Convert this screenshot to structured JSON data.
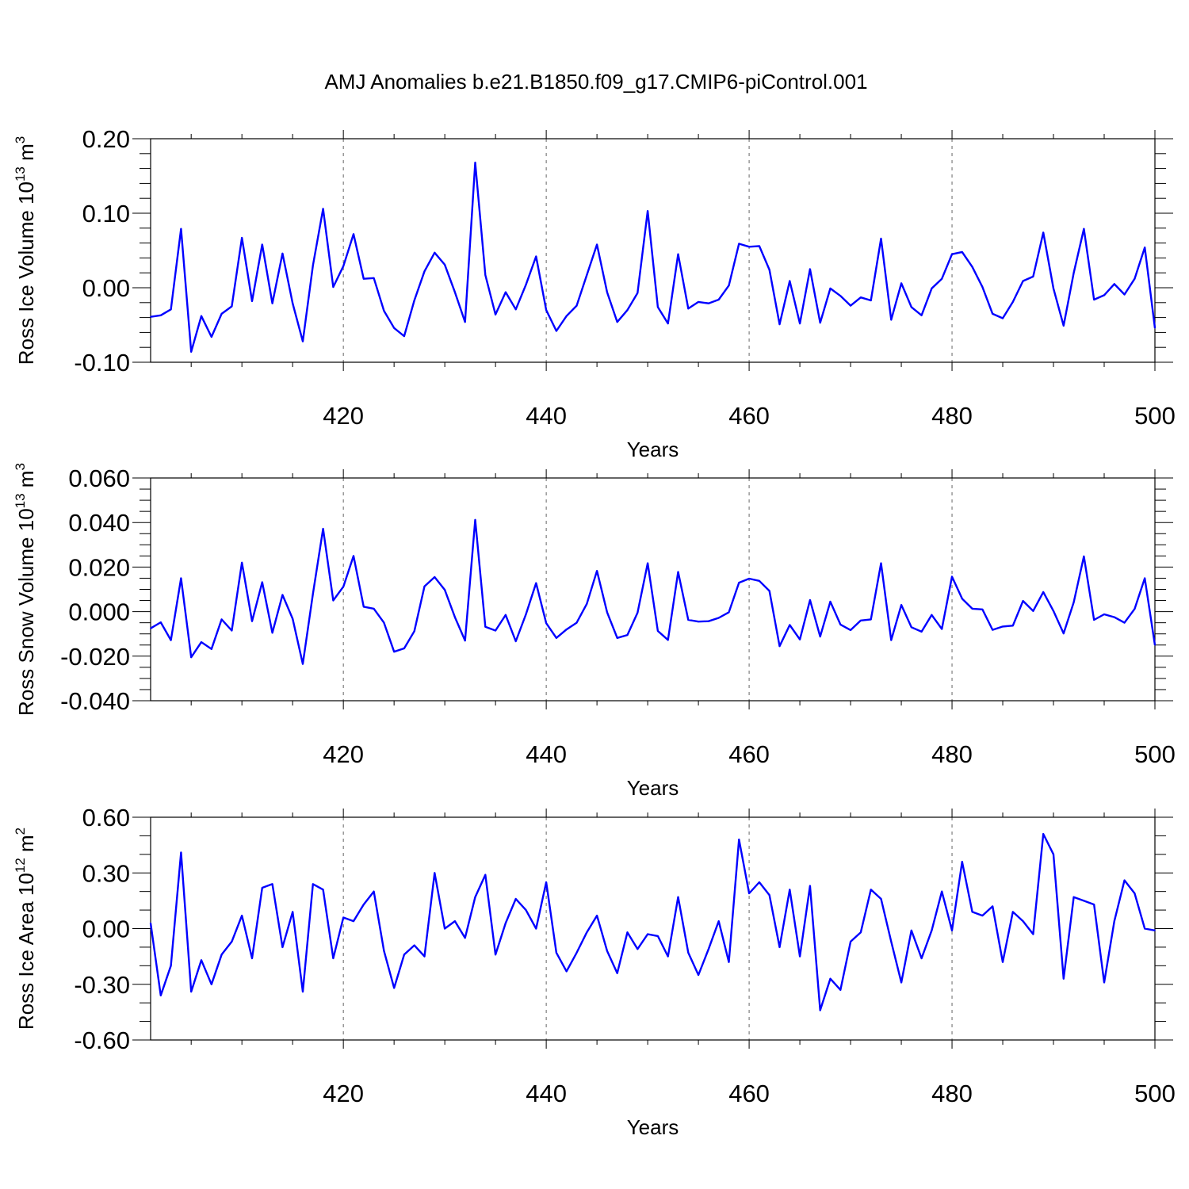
{
  "figure": {
    "title": "AMJ Anomalies b.e21.B1850.f09_g17.CMIP6-piControl.001"
  },
  "chart_data": [
    {
      "type": "line",
      "title": "AMJ Anomalies b.e21.B1850.f09_g17.CMIP6-piControl.001",
      "xlabel": "Years",
      "ylabel": {
        "text": "Ross Ice Volume 10",
        "exp": "13",
        "unit": " m",
        "unit_exp": "3"
      },
      "xlim": [
        401,
        500
      ],
      "ylim": [
        -0.1,
        0.2
      ],
      "xticks": [
        "420",
        "440",
        "460",
        "480",
        "500"
      ],
      "xtick_values": [
        420,
        440,
        460,
        480,
        500
      ],
      "yticks": [
        "0.20",
        "0.10",
        "0.00",
        "-0.10"
      ],
      "ytick_values": [
        0.2,
        0.1,
        0.0,
        -0.1
      ],
      "y_minor_step": 0.02,
      "x_minor_step": 5,
      "grid": "vertical dashed at major x ticks",
      "line_color": "#0000ff",
      "x": [
        401,
        402,
        403,
        404,
        405,
        406,
        407,
        408,
        409,
        410,
        411,
        412,
        413,
        414,
        415,
        416,
        417,
        418,
        419,
        420,
        421,
        422,
        423,
        424,
        425,
        426,
        427,
        428,
        429,
        430,
        431,
        432,
        433,
        434,
        435,
        436,
        437,
        438,
        439,
        440,
        441,
        442,
        443,
        444,
        445,
        446,
        447,
        448,
        449,
        450,
        451,
        452,
        453,
        454,
        455,
        456,
        457,
        458,
        459,
        460,
        461,
        462,
        463,
        464,
        465,
        466,
        467,
        468,
        469,
        470,
        471,
        472,
        473,
        474,
        475,
        476,
        477,
        478,
        479,
        480,
        481,
        482,
        483,
        484,
        485,
        486,
        487,
        488,
        489,
        490,
        491,
        492,
        493,
        494,
        495,
        496,
        497,
        498,
        499,
        500
      ],
      "values": [
        -0.039,
        -0.037,
        -0.029,
        0.079,
        -0.086,
        -0.038,
        -0.066,
        -0.035,
        -0.025,
        0.067,
        -0.018,
        0.058,
        -0.021,
        0.046,
        -0.021,
        -0.072,
        0.03,
        0.106,
        0.001,
        0.029,
        0.072,
        0.012,
        0.013,
        -0.031,
        -0.054,
        -0.065,
        -0.017,
        0.022,
        0.047,
        0.031,
        -0.006,
        -0.046,
        0.168,
        0.017,
        -0.036,
        -0.006,
        -0.029,
        0.004,
        0.042,
        -0.03,
        -0.058,
        -0.038,
        -0.024,
        0.017,
        0.058,
        -0.006,
        -0.046,
        -0.03,
        -0.007,
        0.103,
        -0.026,
        -0.048,
        0.045,
        -0.028,
        -0.019,
        -0.021,
        -0.016,
        0.003,
        0.059,
        0.055,
        0.056,
        0.024,
        -0.049,
        0.009,
        -0.048,
        0.025,
        -0.047,
        -0.001,
        -0.011,
        -0.024,
        -0.013,
        -0.017,
        0.066,
        -0.043,
        0.006,
        -0.026,
        -0.037,
        -0.001,
        0.012,
        0.045,
        0.048,
        0.028,
        0.001,
        -0.035,
        -0.041,
        -0.019,
        0.009,
        0.015,
        0.074,
        -0.001,
        -0.051,
        0.02,
        0.079,
        -0.016,
        -0.01,
        0.005,
        -0.009,
        0.012,
        0.054,
        -0.054
      ]
    },
    {
      "type": "line",
      "xlabel": "Years",
      "ylabel": {
        "text": "Ross Snow Volume 10",
        "exp": "13",
        "unit": " m",
        "unit_exp": "3"
      },
      "xlim": [
        401,
        500
      ],
      "ylim": [
        -0.04,
        0.06
      ],
      "xticks": [
        "420",
        "440",
        "460",
        "480",
        "500"
      ],
      "xtick_values": [
        420,
        440,
        460,
        480,
        500
      ],
      "yticks": [
        "0.060",
        "0.040",
        "0.020",
        "0.000",
        "-0.020",
        "-0.040"
      ],
      "ytick_values": [
        0.06,
        0.04,
        0.02,
        0.0,
        -0.02,
        -0.04
      ],
      "y_minor_step": 0.005,
      "x_minor_step": 5,
      "grid": "vertical dashed at major x ticks",
      "line_color": "#0000ff",
      "x": [
        401,
        402,
        403,
        404,
        405,
        406,
        407,
        408,
        409,
        410,
        411,
        412,
        413,
        414,
        415,
        416,
        417,
        418,
        419,
        420,
        421,
        422,
        423,
        424,
        425,
        426,
        427,
        428,
        429,
        430,
        431,
        432,
        433,
        434,
        435,
        436,
        437,
        438,
        439,
        440,
        441,
        442,
        443,
        444,
        445,
        446,
        447,
        448,
        449,
        450,
        451,
        452,
        453,
        454,
        455,
        456,
        457,
        458,
        459,
        460,
        461,
        462,
        463,
        464,
        465,
        466,
        467,
        468,
        469,
        470,
        471,
        472,
        473,
        474,
        475,
        476,
        477,
        478,
        479,
        480,
        481,
        482,
        483,
        484,
        485,
        486,
        487,
        488,
        489,
        490,
        491,
        492,
        493,
        494,
        495,
        496,
        497,
        498,
        499,
        500
      ],
      "values": [
        -0.0075,
        -0.0048,
        -0.0128,
        0.015,
        -0.0205,
        -0.0137,
        -0.0168,
        -0.0035,
        -0.0085,
        0.022,
        -0.0043,
        0.0132,
        -0.0095,
        0.0075,
        -0.0032,
        -0.0235,
        0.008,
        0.0372,
        0.005,
        0.0112,
        0.025,
        0.0022,
        0.0013,
        -0.005,
        -0.018,
        -0.0165,
        -0.0088,
        0.0113,
        0.0155,
        0.0098,
        -0.0025,
        -0.013,
        0.0412,
        -0.0068,
        -0.0085,
        -0.0015,
        -0.0133,
        -0.0012,
        0.0128,
        -0.0052,
        -0.0118,
        -0.008,
        -0.005,
        0.0035,
        0.0183,
        -0.0003,
        -0.0118,
        -0.0105,
        -0.0005,
        0.0217,
        -0.0087,
        -0.0127,
        0.0178,
        -0.0037,
        -0.0045,
        -0.0043,
        -0.0028,
        -0.0003,
        0.013,
        0.0148,
        0.0138,
        0.0093,
        -0.0155,
        -0.006,
        -0.0125,
        0.0052,
        -0.0112,
        0.0045,
        -0.0058,
        -0.0083,
        -0.004,
        -0.0035,
        0.0217,
        -0.0128,
        0.003,
        -0.007,
        -0.009,
        -0.0015,
        -0.0078,
        0.0157,
        0.0058,
        0.0013,
        0.001,
        -0.0082,
        -0.0067,
        -0.0063,
        0.0048,
        0.0003,
        0.0088,
        0.0003,
        -0.0098,
        0.0042,
        0.0248,
        -0.0037,
        -0.0012,
        -0.0025,
        -0.005,
        0.0012,
        0.015,
        -0.015
      ]
    },
    {
      "type": "line",
      "xlabel": "Years",
      "ylabel": {
        "text": "Ross Ice Area 10",
        "exp": "12",
        "unit": " m",
        "unit_exp": "2"
      },
      "xlim": [
        401,
        500
      ],
      "ylim": [
        -0.6,
        0.6
      ],
      "xticks": [
        "420",
        "440",
        "460",
        "480",
        "500"
      ],
      "xtick_values": [
        420,
        440,
        460,
        480,
        500
      ],
      "yticks": [
        "0.60",
        "0.30",
        "0.00",
        "-0.30",
        "-0.60"
      ],
      "ytick_values": [
        0.6,
        0.3,
        0.0,
        -0.3,
        -0.6
      ],
      "y_minor_step": 0.1,
      "x_minor_step": 5,
      "grid": "vertical dashed at major x ticks",
      "line_color": "#0000ff",
      "x": [
        401,
        402,
        403,
        404,
        405,
        406,
        407,
        408,
        409,
        410,
        411,
        412,
        413,
        414,
        415,
        416,
        417,
        418,
        419,
        420,
        421,
        422,
        423,
        424,
        425,
        426,
        427,
        428,
        429,
        430,
        431,
        432,
        433,
        434,
        435,
        436,
        437,
        438,
        439,
        440,
        441,
        442,
        443,
        444,
        445,
        446,
        447,
        448,
        449,
        450,
        451,
        452,
        453,
        454,
        455,
        456,
        457,
        458,
        459,
        460,
        461,
        462,
        463,
        464,
        465,
        466,
        467,
        468,
        469,
        470,
        471,
        472,
        473,
        474,
        475,
        476,
        477,
        478,
        479,
        480,
        481,
        482,
        483,
        484,
        485,
        486,
        487,
        488,
        489,
        490,
        491,
        492,
        493,
        494,
        495,
        496,
        497,
        498,
        499,
        500
      ],
      "values": [
        0.03,
        -0.36,
        -0.2,
        0.41,
        -0.34,
        -0.17,
        -0.3,
        -0.14,
        -0.07,
        0.07,
        -0.16,
        0.22,
        0.24,
        -0.1,
        0.09,
        -0.34,
        0.24,
        0.21,
        -0.16,
        0.06,
        0.04,
        0.13,
        0.2,
        -0.12,
        -0.32,
        -0.14,
        -0.09,
        -0.15,
        0.3,
        0.0,
        0.04,
        -0.05,
        0.17,
        0.29,
        -0.14,
        0.03,
        0.16,
        0.1,
        0.0,
        0.25,
        -0.13,
        -0.23,
        -0.13,
        -0.02,
        0.07,
        -0.12,
        -0.24,
        -0.02,
        -0.11,
        -0.03,
        -0.04,
        -0.15,
        0.17,
        -0.13,
        -0.25,
        -0.11,
        0.04,
        -0.18,
        0.48,
        0.19,
        0.25,
        0.18,
        -0.1,
        0.21,
        -0.15,
        0.23,
        -0.44,
        -0.27,
        -0.33,
        -0.07,
        -0.02,
        0.21,
        0.16,
        -0.07,
        -0.29,
        -0.01,
        -0.16,
        -0.01,
        0.2,
        -0.01,
        0.36,
        0.09,
        0.07,
        0.12,
        -0.18,
        0.09,
        0.04,
        -0.03,
        0.51,
        0.4,
        -0.27,
        0.17,
        0.15,
        0.13,
        -0.29,
        0.04,
        0.26,
        0.19,
        0.0,
        -0.01
      ]
    }
  ]
}
